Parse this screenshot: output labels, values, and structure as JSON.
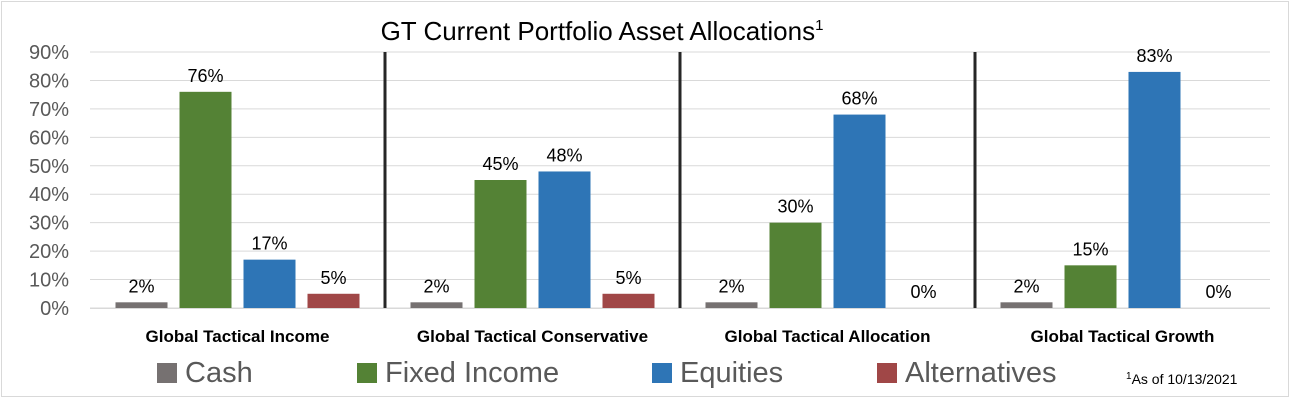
{
  "chart_data": {
    "type": "bar",
    "title": "GT Current Portfolio Asset Allocations",
    "title_superscript": "1",
    "categories": [
      "Global Tactical Income",
      "Global Tactical Conservative",
      "Global Tactical Allocation",
      "Global Tactical Growth"
    ],
    "series": [
      {
        "name": "Cash",
        "color": "#767171",
        "values": [
          2,
          2,
          2,
          2
        ],
        "labels": [
          "2%",
          "2%",
          "2%",
          "2%"
        ]
      },
      {
        "name": "Fixed Income",
        "color": "#548235",
        "values": [
          76,
          45,
          30,
          15
        ],
        "labels": [
          "76%",
          "45%",
          "30%",
          "15%"
        ]
      },
      {
        "name": "Equities",
        "color": "#2e75b6",
        "values": [
          17,
          48,
          68,
          83
        ],
        "labels": [
          "17%",
          "48%",
          "68%",
          "83%"
        ]
      },
      {
        "name": "Alternatives",
        "color": "#a04747",
        "values": [
          5,
          5,
          0,
          0
        ],
        "labels": [
          "5%",
          "5%",
          "0%",
          "0%"
        ]
      }
    ],
    "ylim": [
      0,
      90
    ],
    "yticks": [
      "0%",
      "10%",
      "20%",
      "30%",
      "40%",
      "50%",
      "60%",
      "70%",
      "80%",
      "90%"
    ],
    "xlabel": "",
    "ylabel": "",
    "grid": true,
    "legend_position": "bottom",
    "footnote_superscript": "1",
    "footnote": "As of 10/13/2021"
  }
}
